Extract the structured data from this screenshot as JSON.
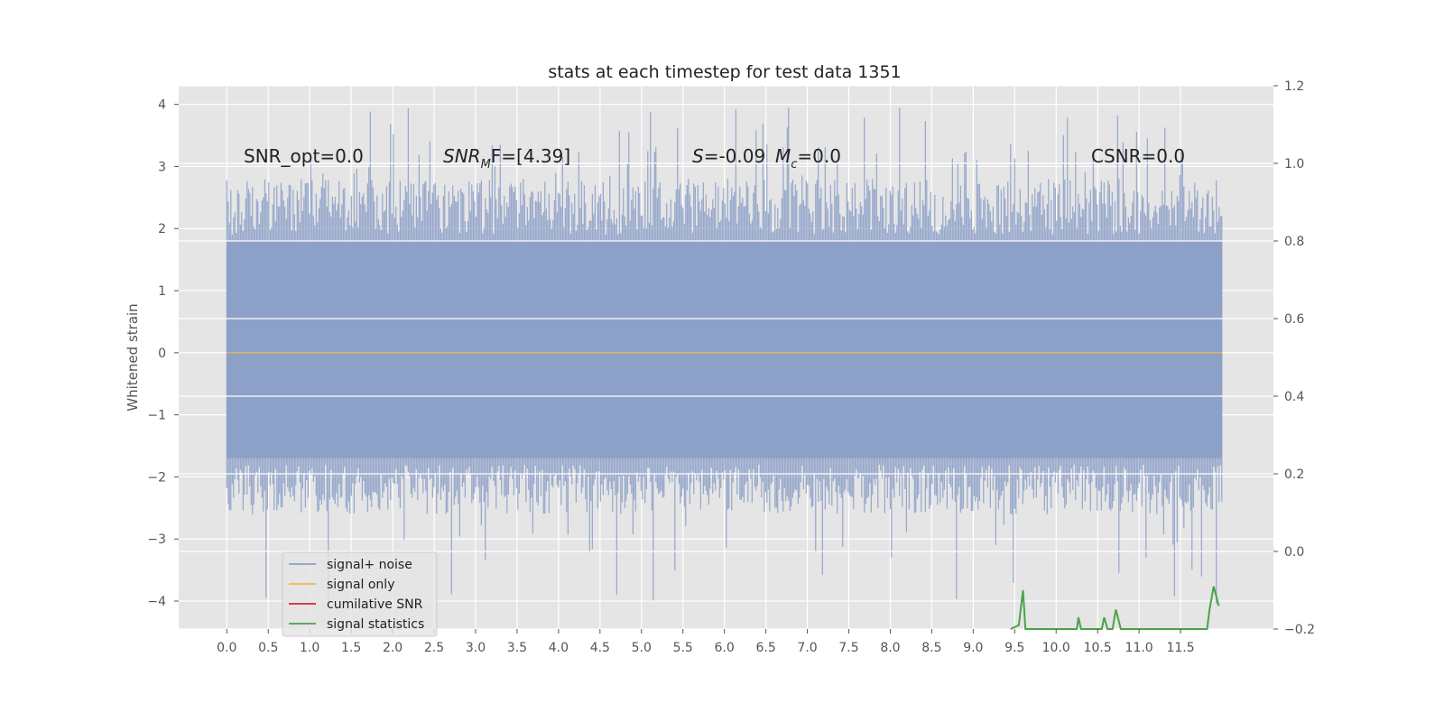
{
  "chart_data": {
    "type": "line",
    "title": "stats at each timestep for test data 1351",
    "ylabel": "Whitened strain",
    "xlabel": "",
    "xlim": [
      -0.58,
      12.62
    ],
    "ylim": [
      -4.45,
      4.3
    ],
    "y2lim": [
      -0.2,
      1.2
    ],
    "grid": true,
    "legend_position": "lower-left",
    "x_ticks": [
      "0.0",
      "0.5",
      "1.0",
      "1.5",
      "2.0",
      "2.5",
      "3.0",
      "3.5",
      "4.0",
      "4.5",
      "5.0",
      "5.5",
      "6.0",
      "6.5",
      "7.0",
      "7.5",
      "8.0",
      "8.5",
      "9.0",
      "9.5",
      "10.0",
      "10.5",
      "11.0",
      "11.5"
    ],
    "y_ticks": [
      "4",
      "3",
      "2",
      "1",
      "0",
      "−1",
      "−2",
      "−3",
      "−4"
    ],
    "y2_ticks": [
      "1.2",
      "1.0",
      "0.8",
      "0.6",
      "0.4",
      "0.2",
      "0.0",
      "−0.2"
    ],
    "annotations": {
      "snr_opt": "SNR_opt=0.0",
      "snr_mf_main": "SNR",
      "snr_mf_sub": "M",
      "snr_mf_rest": "F=[4.39]",
      "s_label": "S",
      "s_value": "=-0.09",
      "mc_main": "M",
      "mc_sub": "c",
      "mc_rest": "=0.0",
      "csnr": "CSNR=0.0"
    },
    "series": [
      {
        "name": "signal+ noise",
        "color": "#8da0c8",
        "x_range": [
          0.0,
          12.0
        ],
        "envelope": {
          "typical_min": -2.3,
          "typical_max": 2.6,
          "peak_max": 3.95,
          "peak_min": -4.1
        }
      },
      {
        "name": "signal only",
        "color": "#f0b84c",
        "values": [
          0.0
        ]
      },
      {
        "name": "cumilative SNR",
        "color": "#d62728",
        "values": []
      },
      {
        "name": "signal statistics",
        "color": "#4aa24a",
        "axis": "right",
        "points": [
          [
            9.45,
            -0.2
          ],
          [
            9.55,
            -0.19
          ],
          [
            9.6,
            -0.1
          ],
          [
            9.63,
            -0.2
          ],
          [
            10.25,
            -0.2
          ],
          [
            10.27,
            -0.17
          ],
          [
            10.3,
            -0.2
          ],
          [
            10.55,
            -0.2
          ],
          [
            10.58,
            -0.17
          ],
          [
            10.62,
            -0.2
          ],
          [
            10.68,
            -0.2
          ],
          [
            10.72,
            -0.15
          ],
          [
            10.78,
            -0.2
          ],
          [
            11.82,
            -0.2
          ],
          [
            11.85,
            -0.15
          ],
          [
            11.9,
            -0.09
          ],
          [
            11.96,
            -0.14
          ]
        ]
      }
    ]
  },
  "legend": {
    "items": [
      {
        "label": "signal+ noise",
        "color": "#8da0c8"
      },
      {
        "label": "signal only",
        "color": "#f0b84c"
      },
      {
        "label": "cumilative SNR",
        "color": "#d62728"
      },
      {
        "label": "signal statistics",
        "color": "#4aa24a"
      }
    ]
  },
  "colors": {
    "plot_bg": "#e5e5e5",
    "grid": "#ffffff",
    "noise": "#8da0c8",
    "signal": "#f0b84c"
  }
}
